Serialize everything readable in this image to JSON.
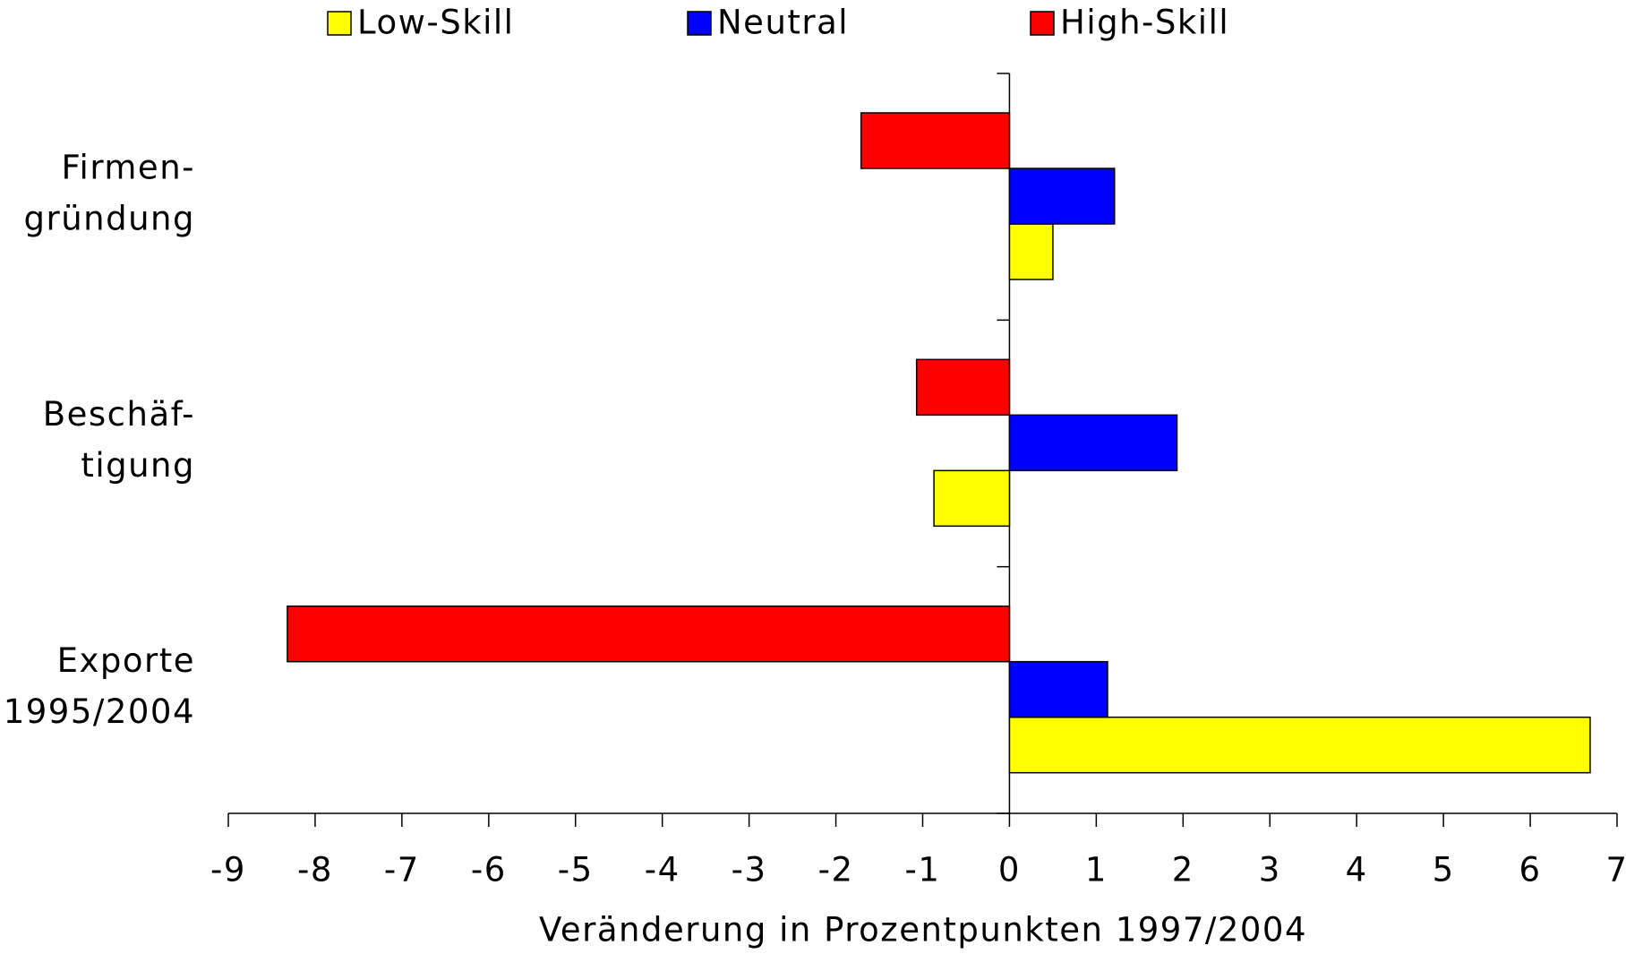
{
  "chart_data": {
    "type": "hbar",
    "categories": [
      [
        "Firmen-",
        "gründung"
      ],
      [
        "Beschäf-",
        "tigung"
      ],
      [
        "Exporte",
        "1995/2004"
      ]
    ],
    "series": [
      {
        "name": "Low-Skill",
        "color": "#ffff00",
        "values": [
          0.5,
          -0.87,
          6.69
        ]
      },
      {
        "name": "Neutral",
        "color": "#0000ff",
        "values": [
          1.21,
          1.93,
          1.13
        ]
      },
      {
        "name": "High-Skill",
        "color": "#ff0000",
        "values": [
          -1.71,
          -1.07,
          -8.32
        ]
      }
    ],
    "xlim": [
      -9,
      7
    ],
    "xticks": [
      -9,
      -8,
      -7,
      -6,
      -5,
      -4,
      -3,
      -2,
      -1,
      0,
      1,
      2,
      3,
      4,
      5,
      6,
      7
    ],
    "xlabel": "Veränderung in Prozentpunkten 1997/2004",
    "legend": "top"
  }
}
